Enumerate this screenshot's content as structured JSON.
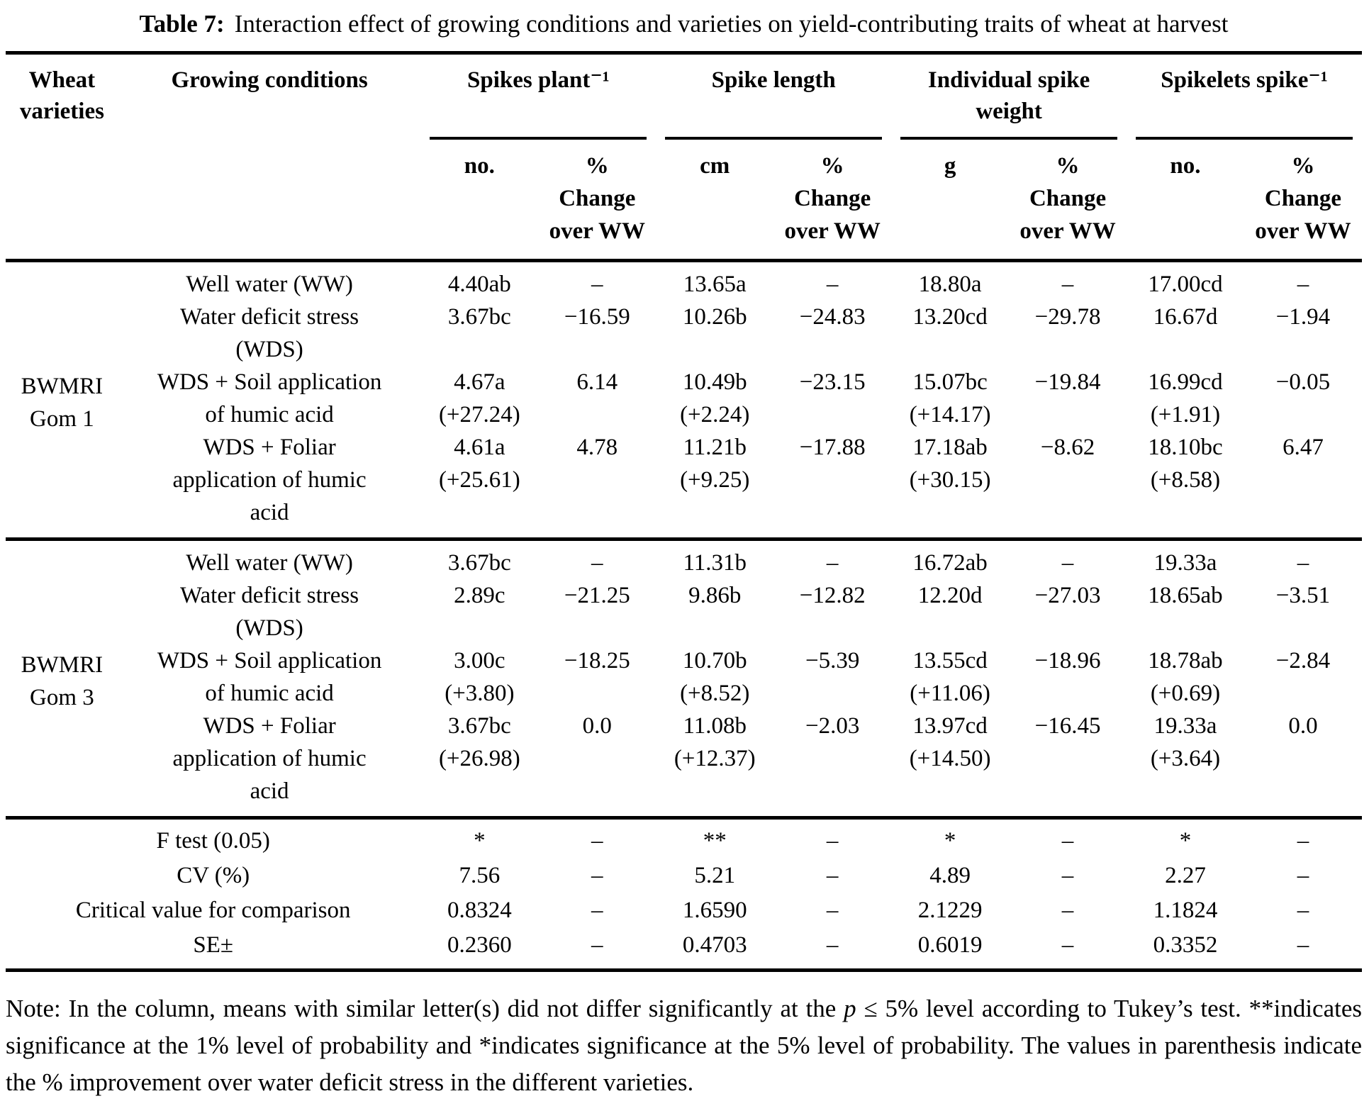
{
  "title": {
    "label": "Table 7:",
    "text": "Interaction effect of growing conditions and varieties on yield-contributing traits of wheat at harvest"
  },
  "table": {
    "col_headers": {
      "wheat_varieties": "Wheat\nvarieties",
      "growing_conditions": "Growing conditions",
      "groups": [
        {
          "label": "Spikes plant⁻¹",
          "unit": "no.",
          "change": "%\nChange\nover WW"
        },
        {
          "label": "Spike length",
          "unit": "cm",
          "change": "%\nChange\nover WW"
        },
        {
          "label": "Individual spike\nweight",
          "unit": "g",
          "change": "%\nChange\nover WW"
        },
        {
          "label": "Spikelets spike⁻¹",
          "unit": "no.",
          "change": "%\nChange\nover WW"
        }
      ]
    },
    "variety_groups": [
      {
        "variety": "BWMRI\nGom 1",
        "rows": [
          {
            "condition": "Well water (WW)",
            "cells": [
              [
                "4.40ab",
                ""
              ],
              [
                "–",
                ""
              ],
              [
                "13.65a",
                ""
              ],
              [
                "–",
                ""
              ],
              [
                "18.80a",
                ""
              ],
              [
                "–",
                ""
              ],
              [
                "17.00cd",
                ""
              ],
              [
                "–",
                ""
              ]
            ]
          },
          {
            "condition": "Water deficit stress\n(WDS)",
            "cells": [
              [
                "3.67bc",
                ""
              ],
              [
                "−16.59",
                ""
              ],
              [
                "10.26b",
                ""
              ],
              [
                "−24.83",
                ""
              ],
              [
                "13.20cd",
                ""
              ],
              [
                "−29.78",
                ""
              ],
              [
                "16.67d",
                ""
              ],
              [
                "−1.94",
                ""
              ]
            ]
          },
          {
            "condition": "WDS + Soil application\nof humic acid",
            "cells": [
              [
                "4.67a",
                "(+27.24)"
              ],
              [
                "6.14",
                ""
              ],
              [
                "10.49b",
                "(+2.24)"
              ],
              [
                "−23.15",
                ""
              ],
              [
                "15.07bc",
                "(+14.17)"
              ],
              [
                "−19.84",
                ""
              ],
              [
                "16.99cd",
                "(+1.91)"
              ],
              [
                "−0.05",
                ""
              ]
            ]
          },
          {
            "condition": "WDS + Foliar\napplication of humic\nacid",
            "cells": [
              [
                "4.61a",
                "(+25.61)"
              ],
              [
                "4.78",
                ""
              ],
              [
                "11.21b",
                "(+9.25)"
              ],
              [
                "−17.88",
                ""
              ],
              [
                "17.18ab",
                "(+30.15)"
              ],
              [
                "−8.62",
                ""
              ],
              [
                "18.10bc",
                "(+8.58)"
              ],
              [
                "6.47",
                ""
              ]
            ]
          }
        ]
      },
      {
        "variety": "BWMRI\nGom 3",
        "rows": [
          {
            "condition": "Well water (WW)",
            "cells": [
              [
                "3.67bc",
                ""
              ],
              [
                "–",
                ""
              ],
              [
                "11.31b",
                ""
              ],
              [
                "–",
                ""
              ],
              [
                "16.72ab",
                ""
              ],
              [
                "–",
                ""
              ],
              [
                "19.33a",
                ""
              ],
              [
                "–",
                ""
              ]
            ]
          },
          {
            "condition": "Water deficit stress\n(WDS)",
            "cells": [
              [
                "2.89c",
                ""
              ],
              [
                "−21.25",
                ""
              ],
              [
                "9.86b",
                ""
              ],
              [
                "−12.82",
                ""
              ],
              [
                "12.20d",
                ""
              ],
              [
                "−27.03",
                ""
              ],
              [
                "18.65ab",
                ""
              ],
              [
                "−3.51",
                ""
              ]
            ]
          },
          {
            "condition": "WDS + Soil application\nof humic acid",
            "cells": [
              [
                "3.00c",
                "(+3.80)"
              ],
              [
                "−18.25",
                ""
              ],
              [
                "10.70b",
                "(+8.52)"
              ],
              [
                "−5.39",
                ""
              ],
              [
                "13.55cd",
                "(+11.06)"
              ],
              [
                "−18.96",
                ""
              ],
              [
                "18.78ab",
                "(+0.69)"
              ],
              [
                "−2.84",
                ""
              ]
            ]
          },
          {
            "condition": "WDS + Foliar\napplication of humic\nacid",
            "cells": [
              [
                "3.67bc",
                "(+26.98)"
              ],
              [
                "0.0",
                ""
              ],
              [
                "11.08b",
                "(+12.37)"
              ],
              [
                "−2.03",
                ""
              ],
              [
                "13.97cd",
                "(+14.50)"
              ],
              [
                "−16.45",
                ""
              ],
              [
                "19.33a",
                "(+3.64)"
              ],
              [
                "0.0",
                ""
              ]
            ]
          }
        ]
      }
    ],
    "stats_rows": [
      {
        "label": "F test (0.05)",
        "values": [
          "*",
          "–",
          "**",
          "–",
          "*",
          "–",
          "*",
          "–"
        ]
      },
      {
        "label": "CV (%)",
        "values": [
          "7.56",
          "–",
          "5.21",
          "–",
          "4.89",
          "–",
          "2.27",
          "–"
        ]
      },
      {
        "label": "Critical value for comparison",
        "values": [
          "0.8324",
          "–",
          "1.6590",
          "–",
          "2.1229",
          "–",
          "1.1824",
          "–"
        ]
      },
      {
        "label": "SE±",
        "values": [
          "0.2360",
          "–",
          "0.4703",
          "–",
          "0.6019",
          "–",
          "0.3352",
          "–"
        ]
      }
    ]
  },
  "note": {
    "part1": "Note: In the column, means with similar letter(s) did not differ significantly at the ",
    "italic_p": "p",
    "part2": " ≤ 5% level according to Tukey’s test. **indicates significance at the 1% level of probability and *indicates significance at the 5% level of probability. The values in parenthesis indicate the % improvement over water deficit stress in the different varieties."
  }
}
